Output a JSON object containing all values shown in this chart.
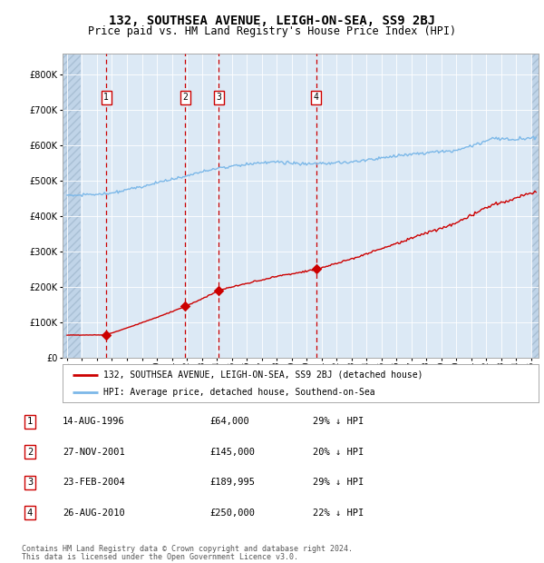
{
  "title1": "132, SOUTHSEA AVENUE, LEIGH-ON-SEA, SS9 2BJ",
  "title2": "Price paid vs. HM Land Registry's House Price Index (HPI)",
  "legend_red": "132, SOUTHSEA AVENUE, LEIGH-ON-SEA, SS9 2BJ (detached house)",
  "legend_blue": "HPI: Average price, detached house, Southend-on-Sea",
  "footer1": "Contains HM Land Registry data © Crown copyright and database right 2024.",
  "footer2": "This data is licensed under the Open Government Licence v3.0.",
  "sales": [
    {
      "num": 1,
      "date_label": "14-AUG-1996",
      "year": 1996.62,
      "price": 64000,
      "pct": "29%",
      "dir": "↓"
    },
    {
      "num": 2,
      "date_label": "27-NOV-2001",
      "year": 2001.9,
      "price": 145000,
      "pct": "20%",
      "dir": "↓"
    },
    {
      "num": 3,
      "date_label": "23-FEB-2004",
      "year": 2004.14,
      "price": 189995,
      "pct": "29%",
      "dir": "↓"
    },
    {
      "num": 4,
      "date_label": "26-AUG-2010",
      "year": 2010.65,
      "price": 250000,
      "pct": "22%",
      "dir": "↓"
    }
  ],
  "ylim": [
    0,
    860000
  ],
  "yticks": [
    0,
    100000,
    200000,
    300000,
    400000,
    500000,
    600000,
    700000,
    800000
  ],
  "xlim_start": 1993.7,
  "xlim_end": 2025.5,
  "background_color": "#ffffff",
  "plot_bg_color": "#dce9f5",
  "grid_color": "#ffffff",
  "red_line_color": "#cc0000",
  "blue_line_color": "#7cb8e8",
  "sale_marker_color": "#cc0000",
  "vline_color": "#cc0000",
  "box_edge_color": "#cc0000",
  "title_fontsize": 10,
  "subtitle_fontsize": 9
}
